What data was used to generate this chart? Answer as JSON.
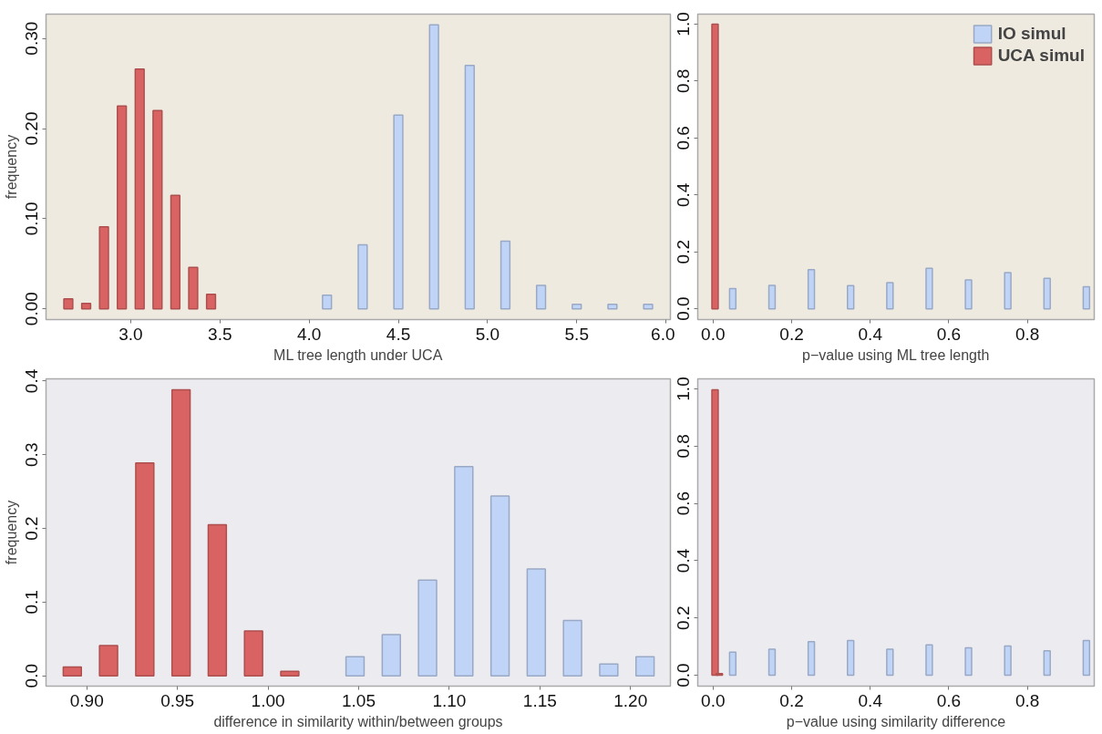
{
  "chart_data": [
    {
      "type": "bar",
      "xlabel": "ML tree length under UCA",
      "ylabel": "frequency",
      "xlim": [
        2.525,
        6.025
      ],
      "ylim": [
        -0.012,
        0.327
      ],
      "xticks": [
        {
          "value": 3,
          "label": "3.0"
        },
        3.5,
        {
          "value": 4,
          "label": "4.0"
        },
        4.5,
        {
          "value": 5,
          "label": "5.0"
        },
        5.5,
        {
          "value": 6,
          "label": "6.0"
        }
      ],
      "yticks": [
        {
          "value": 0,
          "label": "0.00"
        },
        {
          "value": 0.1,
          "label": "0.10"
        },
        {
          "value": 0.2,
          "label": "0.20"
        },
        {
          "value": 0.3,
          "label": "0.30"
        }
      ],
      "grid": false,
      "legend": false,
      "series": [
        {
          "color": "#c0d4f7",
          "x": [
            4.1,
            4.3,
            4.5,
            4.7,
            4.9,
            5.1,
            5.3,
            5.5,
            5.7,
            5.9
          ],
          "values": [
            0.015,
            0.071,
            0.215,
            0.315,
            0.27,
            0.075,
            0.026,
            0.005,
            0.005,
            0.005
          ]
        },
        {
          "color": "#d96363",
          "x": [
            2.65,
            2.75,
            2.85,
            2.95,
            3.05,
            3.15,
            3.25,
            3.35,
            3.45
          ],
          "values": [
            0.011,
            0.006,
            0.091,
            0.225,
            0.266,
            0.22,
            0.126,
            0.046,
            0.016
          ]
        }
      ]
    },
    {
      "type": "bar",
      "xlabel": "p−value using ML tree length",
      "xlim": [
        -0.039,
        0.97
      ],
      "ylim": [
        -0.038,
        1.035
      ],
      "xticks": [
        {
          "value": 0,
          "label": "0.0"
        },
        0.2,
        0.4,
        0.6,
        0.8
      ],
      "yticks": [
        {
          "value": 0,
          "label": "0.0"
        },
        0.2,
        0.4,
        0.6,
        0.8,
        {
          "value": 1,
          "label": "1.0"
        }
      ],
      "grid": false,
      "legend": "top right",
      "series": [
        {
          "name": "IO simul",
          "color": "#c0d4f7",
          "x": [
            0.05,
            0.15,
            0.25,
            0.35,
            0.45,
            0.55,
            0.65,
            0.75,
            0.85,
            0.95
          ],
          "values": [
            0.071,
            0.082,
            0.137,
            0.081,
            0.092,
            0.142,
            0.101,
            0.127,
            0.107,
            0.077
          ]
        },
        {
          "name": "UCA simul",
          "color": "#d96363",
          "x": [
            0.005
          ],
          "values": [
            1.0
          ]
        }
      ]
    },
    {
      "type": "bar",
      "xlabel": "difference in similarity within/between groups",
      "ylabel": "frequency",
      "xlim": [
        0.8775,
        1.222
      ],
      "ylim": [
        -0.014,
        0.403
      ],
      "xticks": [
        {
          "value": 0.9,
          "label": "0.90"
        },
        0.95,
        {
          "value": 1.0,
          "label": "1.00"
        },
        1.05,
        {
          "value": 1.1,
          "label": "1.10"
        },
        1.15,
        {
          "value": 1.2,
          "label": "1.20"
        }
      ],
      "yticks": [
        {
          "value": 0,
          "label": "0.0"
        },
        0.1,
        0.2,
        0.3,
        0.4
      ],
      "grid": false,
      "legend": false,
      "series": [
        {
          "color": "#c0d4f7",
          "x": [
            1.048,
            1.068,
            1.088,
            1.108,
            1.128,
            1.148,
            1.168,
            1.188,
            1.208
          ],
          "values": [
            0.026,
            0.056,
            0.13,
            0.284,
            0.244,
            0.145,
            0.075,
            0.016,
            0.026
          ]
        },
        {
          "color": "#d96363",
          "x": [
            0.892,
            0.912,
            0.932,
            0.952,
            0.972,
            0.992,
            1.012
          ],
          "values": [
            0.012,
            0.041,
            0.289,
            0.388,
            0.205,
            0.061,
            0.006
          ]
        }
      ]
    },
    {
      "type": "bar",
      "xlabel": "p−value using similarity difference",
      "xlim": [
        -0.039,
        0.97
      ],
      "ylim": [
        -0.038,
        1.035
      ],
      "xticks": [
        {
          "value": 0,
          "label": "0.0"
        },
        0.2,
        0.4,
        0.6,
        0.8
      ],
      "yticks": [
        {
          "value": 0,
          "label": "0.0"
        },
        0.2,
        0.4,
        0.6,
        0.8,
        {
          "value": 1,
          "label": "1.0"
        }
      ],
      "grid": false,
      "legend": false,
      "series": [
        {
          "color": "#c0d4f7",
          "x": [
            0.05,
            0.15,
            0.25,
            0.35,
            0.45,
            0.55,
            0.65,
            0.75,
            0.85,
            0.95
          ],
          "values": [
            0.081,
            0.091,
            0.117,
            0.121,
            0.091,
            0.106,
            0.096,
            0.102,
            0.085,
            0.121
          ]
        },
        {
          "color": "#d96363",
          "x": [
            0.005,
            0.016
          ],
          "values": [
            0.997,
            0.006
          ]
        }
      ]
    }
  ]
}
